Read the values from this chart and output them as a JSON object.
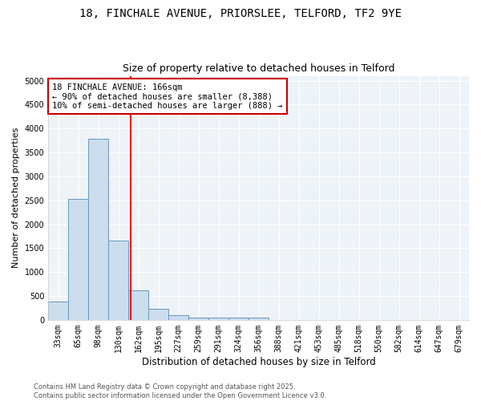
{
  "title1": "18, FINCHALE AVENUE, PRIORSLEE, TELFORD, TF2 9YE",
  "title2": "Size of property relative to detached houses in Telford",
  "xlabel": "Distribution of detached houses by size in Telford",
  "ylabel": "Number of detached properties",
  "categories": [
    "33sqm",
    "65sqm",
    "98sqm",
    "130sqm",
    "162sqm",
    "195sqm",
    "227sqm",
    "259sqm",
    "291sqm",
    "324sqm",
    "356sqm",
    "388sqm",
    "421sqm",
    "453sqm",
    "485sqm",
    "518sqm",
    "550sqm",
    "582sqm",
    "614sqm",
    "647sqm",
    "679sqm"
  ],
  "values": [
    380,
    2530,
    3780,
    1660,
    620,
    240,
    105,
    50,
    50,
    50,
    50,
    0,
    0,
    0,
    0,
    0,
    0,
    0,
    0,
    0,
    0
  ],
  "bar_color": "#ccdded",
  "bar_edge_color": "#6699bb",
  "red_line_x": 4.0,
  "annotation_line1": "18 FINCHALE AVENUE: 166sqm",
  "annotation_line2": "← 90% of detached houses are smaller (8,388)",
  "annotation_line3": "10% of semi-detached houses are larger (888) →",
  "ylim": [
    0,
    5100
  ],
  "yticks": [
    0,
    500,
    1000,
    1500,
    2000,
    2500,
    3000,
    3500,
    4000,
    4500,
    5000
  ],
  "footer1": "Contains HM Land Registry data © Crown copyright and database right 2025.",
  "footer2": "Contains public sector information licensed under the Open Government Licence v3.0.",
  "bg_color": "#ffffff",
  "plot_bg_color": "#eef3f8",
  "grid_color": "#ffffff",
  "title_fontsize": 10,
  "subtitle_fontsize": 9,
  "ylabel_fontsize": 8,
  "xlabel_fontsize": 8.5,
  "tick_fontsize": 7,
  "footer_fontsize": 6,
  "annot_fontsize": 7.5
}
